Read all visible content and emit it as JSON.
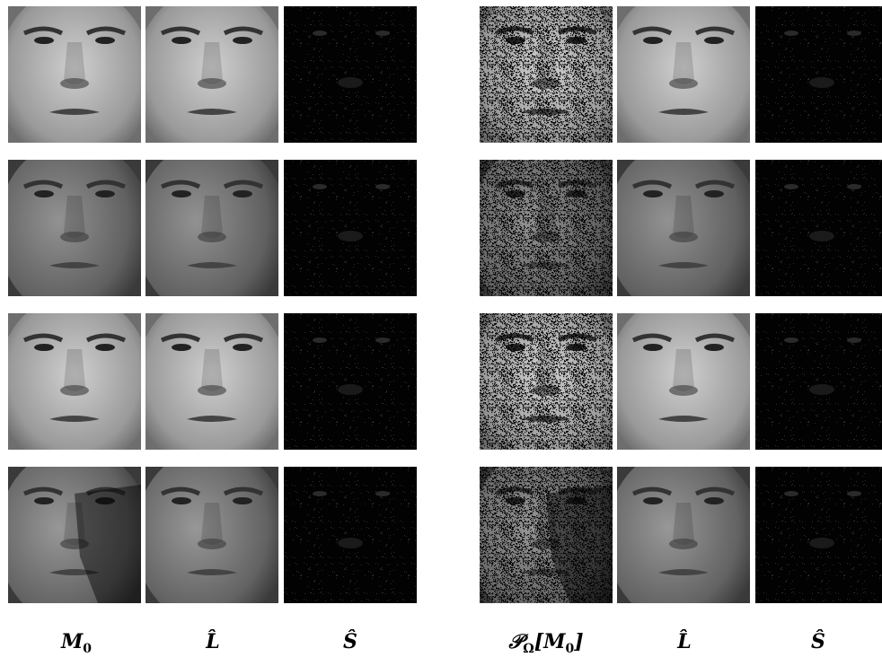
{
  "labels": [
    [
      {
        "text": "M"
      },
      {
        "text": "0",
        "sub": true
      }
    ],
    [
      {
        "text": "L̂"
      }
    ],
    [
      {
        "text": "Ŝ"
      }
    ],
    [
      {
        "text": "𝒫"
      },
      {
        "text": "Ω",
        "sub": true
      },
      {
        "text": "[M"
      },
      {
        "text": "0",
        "sub": true
      },
      {
        "text": "]"
      }
    ],
    [
      {
        "text": "L̂"
      }
    ],
    [
      {
        "text": "Ŝ"
      }
    ]
  ]
}
